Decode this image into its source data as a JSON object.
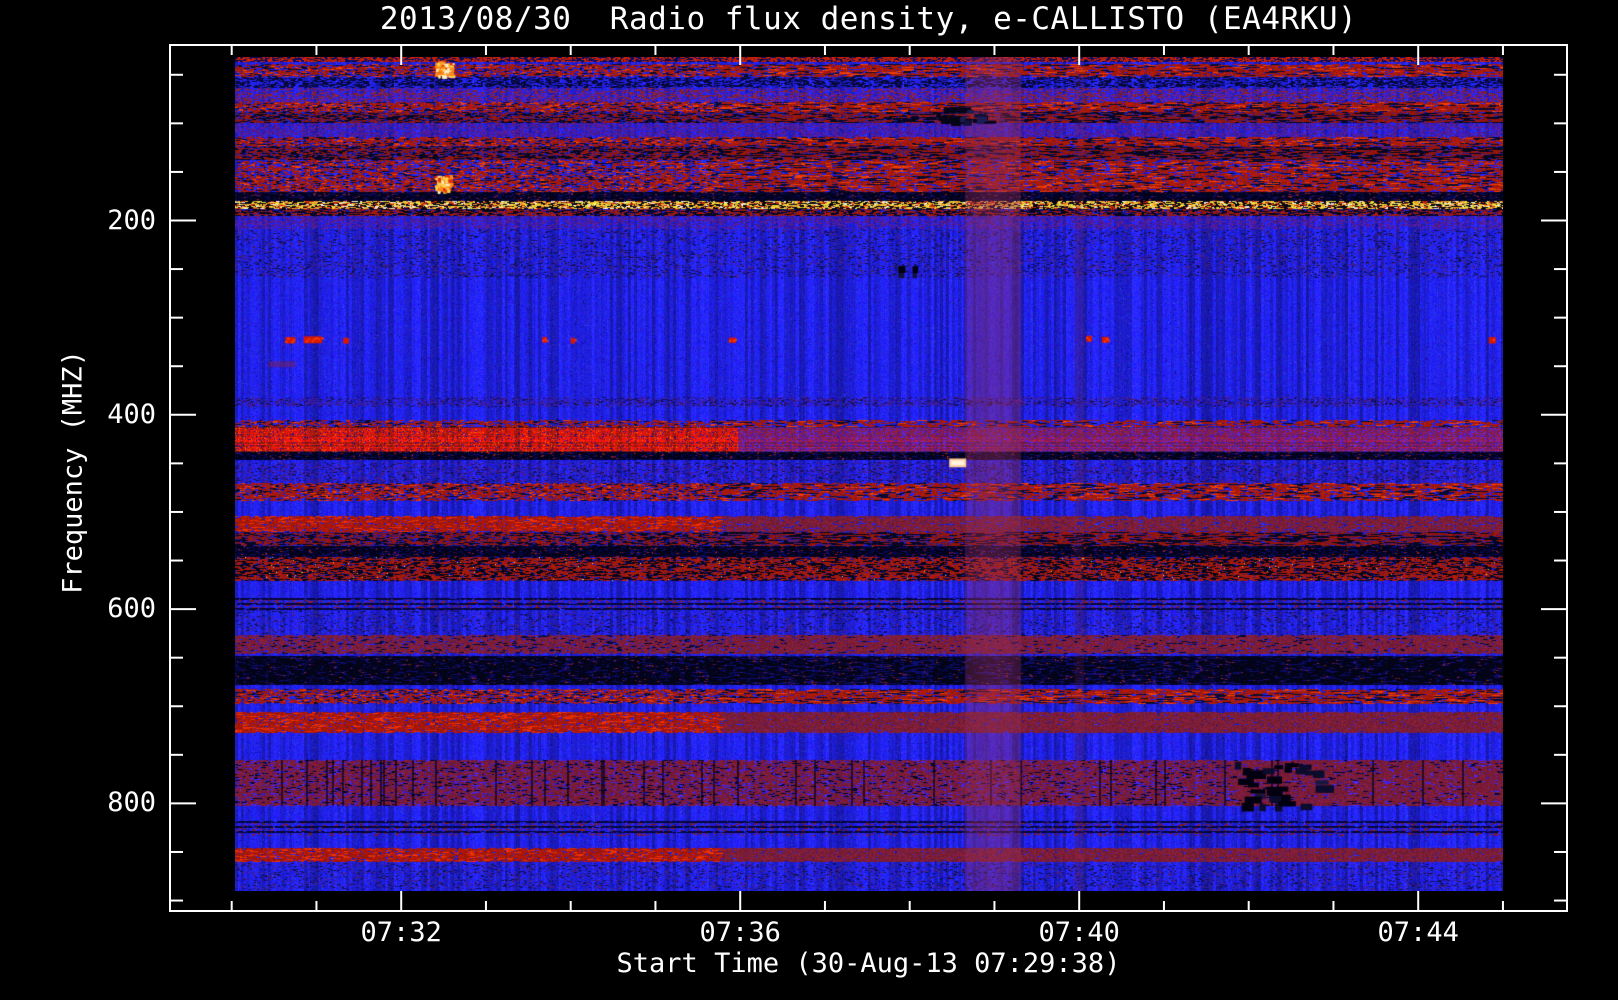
{
  "chart_data": {
    "type": "heatmap",
    "title": "2013/08/30  Radio flux density, e-CALLISTO (EA4RKU)",
    "xlabel": "Start Time (30-Aug-13 07:29:38)",
    "ylabel": "Frequency (MHZ)",
    "date": "2013/08/30",
    "station": "EA4RKU",
    "instrument": "e-CALLISTO",
    "start_time": "07:29:38",
    "x_axis": {
      "major_ticks": [
        "07:32",
        "07:36",
        "07:40",
        "07:44"
      ],
      "minor_tick_interval_s": 60,
      "first_minor_tick": "07:30:00",
      "last_minor_tick": "07:45:00",
      "time_range": [
        "07:29:38",
        "07:45:05"
      ]
    },
    "y_axis": {
      "major_ticks": [
        200,
        400,
        600,
        800
      ],
      "minor_tick_interval_mhz": 50,
      "freq_range_mhz": [
        32,
        890
      ],
      "orientation": "frequency increases downward"
    },
    "colormap": {
      "background": "#2121d0",
      "bright_blue": "#4646ff",
      "dark_blue": "#0f0f7a",
      "red": "#cc1a02",
      "bright_red": "#ff3c00",
      "maroon": "#8c2038",
      "navy": "#000060",
      "black": "#000000",
      "purple": "#5a1eb4",
      "yellow": "#ffe44a",
      "white": "#ffffff",
      "orange": "#ff8a1a",
      "peach": "#ffcf9e",
      "vertical_band_tint": "#96305c",
      "frame": "#ffffff",
      "text": "#ffffff"
    },
    "horizontal_bands": [
      {
        "f0": 31,
        "f1": 36,
        "type": "topline",
        "density": 0.3
      },
      {
        "f0": 39,
        "f1": 51,
        "type": "red_speckle",
        "density": 0.4
      },
      {
        "f0": 52,
        "f1": 63,
        "type": "dark_speckle",
        "density": 0.22
      },
      {
        "f0": 64,
        "f1": 78,
        "type": "purple_mix",
        "density": 0.3
      },
      {
        "f0": 78,
        "f1": 88,
        "type": "red_speckle",
        "density": 0.5
      },
      {
        "f0": 88,
        "f1": 100,
        "type": "dark_red_mix",
        "density": 0.55
      },
      {
        "f0": 100,
        "f1": 114,
        "type": "purple_noise",
        "density": 0.3
      },
      {
        "f0": 114,
        "f1": 123,
        "type": "red_speckle",
        "density": 0.5
      },
      {
        "f0": 123,
        "f1": 138,
        "type": "dark_red_mix",
        "density": 0.55
      },
      {
        "f0": 138,
        "f1": 152,
        "type": "red_speckle",
        "density": 0.28
      },
      {
        "f0": 152,
        "f1": 171,
        "type": "red_speckle",
        "density": 0.38
      },
      {
        "f0": 171,
        "f1": 180,
        "type": "dark",
        "density": 0.55
      },
      {
        "f0": 180,
        "f1": 188,
        "type": "yellow_line",
        "density": 0.6
      },
      {
        "f0": 188,
        "f1": 195,
        "type": "red_black",
        "density": 0.55
      },
      {
        "f0": 195,
        "f1": 209,
        "type": "purple_noise",
        "density": 0.22
      },
      {
        "f0": 209,
        "f1": 258,
        "type": "texture",
        "density": 0.13
      },
      {
        "f0": 382,
        "f1": 391,
        "type": "purple_dash",
        "density": 0.25
      },
      {
        "f0": 405,
        "f1": 413,
        "type": "red_speckle",
        "density": 0.3,
        "left": true
      },
      {
        "f0": 413,
        "f1": 437,
        "type": "solid_red",
        "density": 0.9,
        "left": true
      },
      {
        "f0": 438,
        "f1": 445,
        "type": "dark",
        "density": 0.5
      },
      {
        "f0": 449,
        "f1": 469,
        "type": "purple_dash",
        "density": 0.2
      },
      {
        "f0": 470,
        "f1": 488,
        "type": "red_speckle",
        "density": 0.45,
        "left": true
      },
      {
        "f0": 504,
        "f1": 520,
        "type": "red_band",
        "density": 0.6,
        "left": true
      },
      {
        "f0": 521,
        "f1": 534,
        "type": "dark_red_mix",
        "density": 0.5
      },
      {
        "f0": 535,
        "f1": 546,
        "type": "dark",
        "density": 0.45
      },
      {
        "f0": 546,
        "f1": 570,
        "type": "dense_mix",
        "density": 0.7
      },
      {
        "f0": 589,
        "f1": 601,
        "type": "dark_stripes",
        "density": 0.4
      },
      {
        "f0": 601,
        "f1": 626,
        "type": "texture",
        "density": 0.1
      },
      {
        "f0": 627,
        "f1": 645,
        "type": "maroon",
        "density": 0.5
      },
      {
        "f0": 648,
        "f1": 677,
        "type": "dark_navy",
        "density": 0.55
      },
      {
        "f0": 682,
        "f1": 697,
        "type": "red_speckle",
        "density": 0.4
      },
      {
        "f0": 706,
        "f1": 726,
        "type": "red_band",
        "density": 0.6
      },
      {
        "f0": 755,
        "f1": 802,
        "type": "maroon_wide",
        "density": 0.5
      },
      {
        "f0": 818,
        "f1": 833,
        "type": "dark_stripes",
        "density": 0.5
      },
      {
        "f0": 846,
        "f1": 859,
        "type": "red_band",
        "density": 0.65
      },
      {
        "f0": 861,
        "f1": 888,
        "type": "texture",
        "density": 0.13
      }
    ],
    "vertical_bands": [
      {
        "start": "07:38:39",
        "end": "07:39:18",
        "alpha": 0.4
      },
      {
        "start": "07:39:56",
        "end": "07:40:03",
        "alpha": 0.15
      }
    ],
    "point_features": [
      {
        "time": "07:32:24",
        "duration_s": 11,
        "freq_mhz": 36,
        "height_mhz": 15,
        "kind": "bright_orange"
      },
      {
        "time": "07:32:24",
        "duration_s": 10,
        "freq_mhz": 153,
        "height_mhz": 16,
        "kind": "bright_orange"
      },
      {
        "time": "07:30:38",
        "duration_s": 7,
        "freq_mhz": 317,
        "height_mhz": 12,
        "kind": "red_dash"
      },
      {
        "time": "07:30:51",
        "duration_s": 13,
        "freq_mhz": 316,
        "height_mhz": 13,
        "kind": "red_dash"
      },
      {
        "time": "07:31:19",
        "duration_s": 4,
        "freq_mhz": 318,
        "height_mhz": 11,
        "kind": "red_dash"
      },
      {
        "time": "07:33:40",
        "duration_s": 3,
        "freq_mhz": 317,
        "height_mhz": 11,
        "kind": "red_dash"
      },
      {
        "time": "07:34:00",
        "duration_s": 3,
        "freq_mhz": 318,
        "height_mhz": 11,
        "kind": "red_dash"
      },
      {
        "time": "07:35:52",
        "duration_s": 5,
        "freq_mhz": 318,
        "height_mhz": 10,
        "kind": "red_dash"
      },
      {
        "time": "07:40:05",
        "duration_s": 4,
        "freq_mhz": 316,
        "height_mhz": 11,
        "kind": "red_dash"
      },
      {
        "time": "07:40:16",
        "duration_s": 5,
        "freq_mhz": 317,
        "height_mhz": 11,
        "kind": "red_dash"
      },
      {
        "time": "07:44:50",
        "duration_s": 5,
        "freq_mhz": 317,
        "height_mhz": 12,
        "kind": "red_dash"
      },
      {
        "time": "07:30:26",
        "duration_s": 19,
        "freq_mhz": 345,
        "height_mhz": 6,
        "kind": "faint_red"
      },
      {
        "time": "07:38:28",
        "duration_s": 12,
        "freq_mhz": 445,
        "height_mhz": 9,
        "kind": "peach_dash"
      },
      {
        "time": "07:37:52",
        "duration_s": 5,
        "freq_mhz": 247,
        "height_mhz": 13,
        "kind": "black_cluster_small"
      },
      {
        "time": "07:38:02",
        "duration_s": 4,
        "freq_mhz": 247,
        "height_mhz": 13,
        "kind": "black_cluster_small"
      },
      {
        "time": "07:38:12",
        "duration_s": 43,
        "freq_mhz": 82,
        "height_mhz": 16,
        "kind": "dark_cluster"
      },
      {
        "time": "07:41:50",
        "duration_s": 60,
        "freq_mhz": 757,
        "height_mhz": 47,
        "kind": "black_cluster"
      }
    ]
  }
}
